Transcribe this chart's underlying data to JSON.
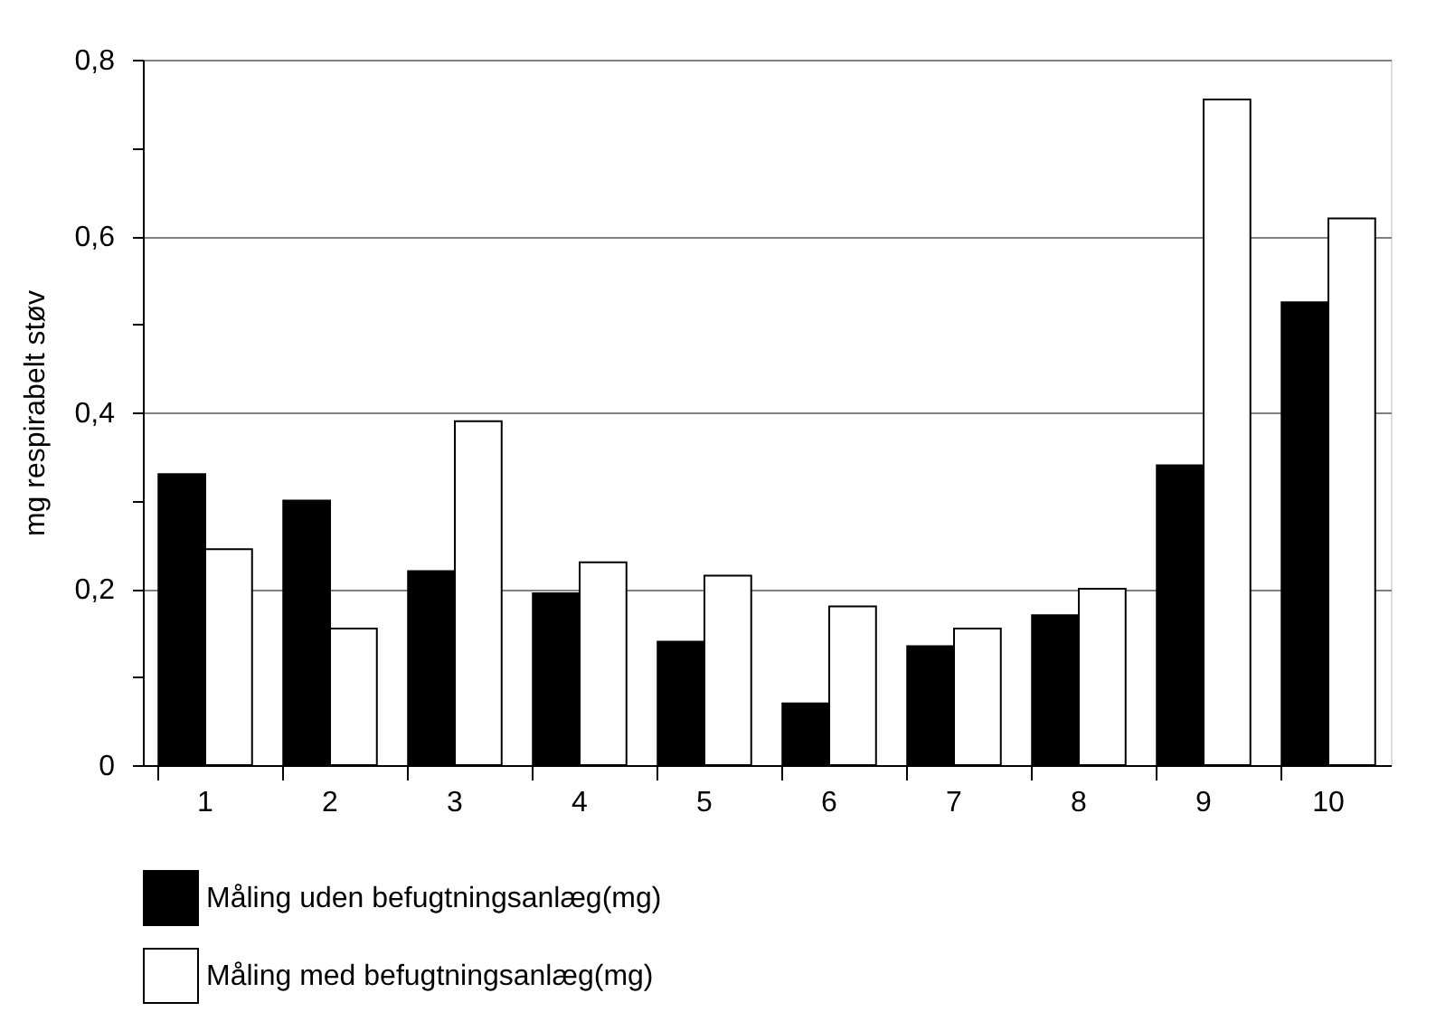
{
  "chart_data": {
    "type": "bar",
    "ylabel": "mg respirabelt støv",
    "categories": [
      "1",
      "2",
      "3",
      "4",
      "5",
      "6",
      "7",
      "8",
      "9",
      "10"
    ],
    "series": [
      {
        "name": "Måling uden befugtningsanlæg(mg)",
        "color": "#000000",
        "values": [
          0.33,
          0.3,
          0.22,
          0.195,
          0.14,
          0.07,
          0.135,
          0.17,
          0.34,
          0.525
        ]
      },
      {
        "name": "Måling med befugtningsanlæg(mg)",
        "color": "#ffffff",
        "values": [
          0.245,
          0.155,
          0.39,
          0.23,
          0.215,
          0.18,
          0.155,
          0.2,
          0.755,
          0.62
        ]
      }
    ],
    "ylim": [
      0,
      0.8
    ],
    "yticks": [
      0,
      {
        "value": 0.1,
        "label": null
      },
      {
        "value": 0.2,
        "label": "0,2"
      },
      {
        "value": 0.3,
        "label": null
      },
      {
        "value": 0.4,
        "label": "0,4"
      },
      {
        "value": 0.5,
        "label": null
      },
      {
        "value": 0.6,
        "label": "0,6"
      },
      {
        "value": 0.7,
        "label": null
      },
      {
        "value": 0.8,
        "label": "0,8"
      }
    ],
    "grid": "y",
    "legend": "bottom"
  }
}
